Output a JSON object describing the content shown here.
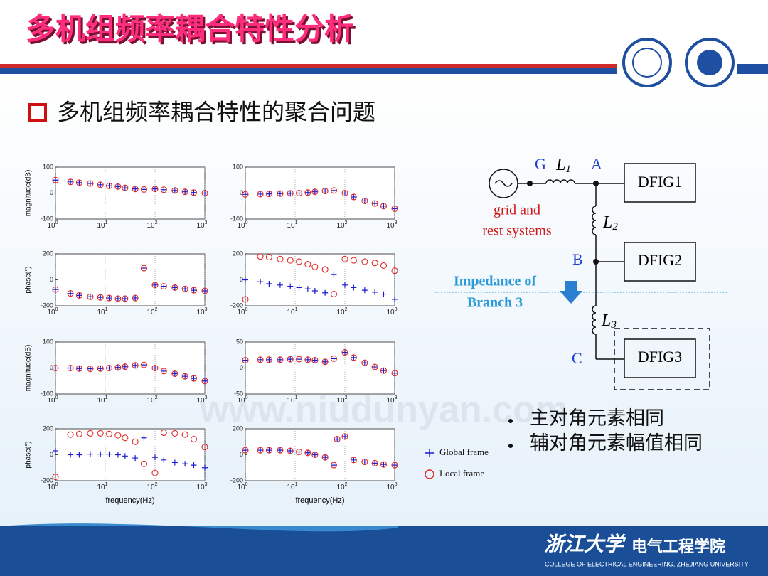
{
  "header": {
    "title": "多机组频率耦合特性分析",
    "subtitle": "多机组频率耦合特性的聚合问题"
  },
  "watermark": "www.niudunyan.com",
  "chart_data": [
    {
      "type": "scatter",
      "ylabel": "magnitude(dB)",
      "x": [
        1,
        2,
        3,
        5,
        8,
        12,
        18,
        25,
        40,
        60,
        100,
        150,
        250,
        400,
        600,
        1000
      ],
      "log_x": true,
      "xlim": [
        1,
        1000
      ],
      "xticks": [
        {
          "value": 1,
          "label": "10",
          "exponent": "0"
        },
        {
          "value": 10,
          "label": "10",
          "exponent": "1"
        },
        {
          "value": 100,
          "label": "10",
          "exponent": "2"
        },
        {
          "value": 1000,
          "label": "10",
          "exponent": "3"
        }
      ],
      "ylim": [
        -100,
        100
      ],
      "yticks": [
        -100,
        0,
        100
      ],
      "grid": true,
      "series": [
        {
          "name": "Global frame",
          "color": "#1a1ad0",
          "marker": "+",
          "values": [
            50,
            43,
            40,
            37,
            32,
            28,
            25,
            20,
            16,
            14,
            16,
            13,
            10,
            5,
            2,
            0
          ]
        },
        {
          "name": "Local frame",
          "color": "#e02828",
          "marker": "o",
          "values": [
            50,
            43,
            40,
            37,
            32,
            28,
            25,
            20,
            16,
            14,
            16,
            13,
            10,
            5,
            2,
            0
          ]
        }
      ]
    },
    {
      "type": "scatter",
      "x": [
        1,
        2,
        3,
        5,
        8,
        12,
        18,
        25,
        40,
        60,
        100,
        150,
        250,
        400,
        600,
        1000
      ],
      "log_x": true,
      "xlim": [
        1,
        1000
      ],
      "xticks": [
        {
          "value": 1,
          "label": "10",
          "exponent": "0"
        },
        {
          "value": 10,
          "label": "10",
          "exponent": "1"
        },
        {
          "value": 100,
          "label": "10",
          "exponent": "2"
        },
        {
          "value": 1000,
          "label": "10",
          "exponent": "3"
        }
      ],
      "ylim": [
        -100,
        100
      ],
      "yticks": [
        -100,
        0,
        100
      ],
      "grid": true,
      "series": [
        {
          "name": "Global frame",
          "color": "#1a1ad0",
          "marker": "+",
          "values": [
            -5,
            -4,
            -3,
            -2,
            -1,
            0,
            2,
            5,
            8,
            10,
            0,
            -15,
            -30,
            -40,
            -50,
            -60
          ]
        },
        {
          "name": "Local frame",
          "color": "#e02828",
          "marker": "o",
          "values": [
            -5,
            -4,
            -3,
            -2,
            -1,
            0,
            2,
            5,
            8,
            10,
            0,
            -15,
            -30,
            -40,
            -50,
            -60
          ]
        }
      ]
    },
    {
      "type": "scatter",
      "ylabel": "phase(°)",
      "x": [
        1,
        2,
        3,
        5,
        8,
        12,
        18,
        25,
        40,
        60,
        100,
        150,
        250,
        400,
        600,
        1000
      ],
      "log_x": true,
      "xlim": [
        1,
        1000
      ],
      "xticks": [
        {
          "value": 1,
          "label": "10",
          "exponent": "0"
        },
        {
          "value": 10,
          "label": "10",
          "exponent": "1"
        },
        {
          "value": 100,
          "label": "10",
          "exponent": "2"
        },
        {
          "value": 1000,
          "label": "10",
          "exponent": "3"
        }
      ],
      "ylim": [
        -200,
        200
      ],
      "yticks": [
        -200,
        0,
        200
      ],
      "grid": true,
      "series": [
        {
          "name": "Global frame",
          "color": "#1a1ad0",
          "marker": "+",
          "values": [
            -75,
            -105,
            -120,
            -130,
            -135,
            -140,
            -145,
            -145,
            -140,
            90,
            -40,
            -50,
            -60,
            -70,
            -80,
            -85
          ]
        },
        {
          "name": "Local frame",
          "color": "#e02828",
          "marker": "o",
          "values": [
            -75,
            -105,
            -120,
            -130,
            -135,
            -140,
            -145,
            -145,
            -140,
            90,
            -40,
            -50,
            -60,
            -70,
            -80,
            -85
          ]
        }
      ]
    },
    {
      "type": "scatter",
      "x": [
        1,
        2,
        3,
        5,
        8,
        12,
        18,
        25,
        40,
        60,
        100,
        150,
        250,
        400,
        600,
        1000
      ],
      "log_x": true,
      "xlim": [
        1,
        1000
      ],
      "xticks": [
        {
          "value": 1,
          "label": "10",
          "exponent": "0"
        },
        {
          "value": 10,
          "label": "10",
          "exponent": "1"
        },
        {
          "value": 100,
          "label": "10",
          "exponent": "2"
        },
        {
          "value": 1000,
          "label": "10",
          "exponent": "3"
        }
      ],
      "ylim": [
        -200,
        200
      ],
      "yticks": [
        -200,
        0,
        200
      ],
      "grid": true,
      "series": [
        {
          "name": "Global frame",
          "color": "#1a1ad0",
          "marker": "+",
          "values": [
            0,
            -15,
            -30,
            -40,
            -50,
            -60,
            -70,
            -85,
            -100,
            40,
            -40,
            -60,
            -80,
            -95,
            -110,
            -150
          ]
        },
        {
          "name": "Local frame",
          "color": "#e02828",
          "marker": "o",
          "values": [
            -150,
            180,
            175,
            160,
            150,
            140,
            120,
            100,
            80,
            -110,
            160,
            150,
            140,
            130,
            110,
            70
          ]
        }
      ]
    },
    {
      "type": "scatter",
      "ylabel": "magnitude(dB)",
      "x": [
        1,
        2,
        3,
        5,
        8,
        12,
        18,
        25,
        40,
        60,
        100,
        150,
        250,
        400,
        600,
        1000
      ],
      "log_x": true,
      "xlim": [
        1,
        1000
      ],
      "xticks": [
        {
          "value": 1,
          "label": "10",
          "exponent": "0"
        },
        {
          "value": 10,
          "label": "10",
          "exponent": "1"
        },
        {
          "value": 100,
          "label": "10",
          "exponent": "2"
        },
        {
          "value": 1000,
          "label": "10",
          "exponent": "3"
        }
      ],
      "ylim": [
        -100,
        100
      ],
      "yticks": [
        -100,
        0,
        100
      ],
      "grid": true,
      "series": [
        {
          "name": "Global frame",
          "color": "#1a1ad0",
          "marker": "+",
          "values": [
            0,
            0,
            -2,
            -3,
            -2,
            0,
            2,
            5,
            10,
            12,
            0,
            -12,
            -22,
            -32,
            -40,
            -50
          ]
        },
        {
          "name": "Local frame",
          "color": "#e02828",
          "marker": "o",
          "values": [
            0,
            0,
            -2,
            -3,
            -2,
            0,
            2,
            5,
            10,
            12,
            0,
            -12,
            -22,
            -32,
            -40,
            -50
          ]
        }
      ]
    },
    {
      "type": "scatter",
      "x": [
        1,
        2,
        3,
        5,
        8,
        12,
        18,
        25,
        40,
        60,
        100,
        150,
        250,
        400,
        600,
        1000
      ],
      "log_x": true,
      "xlim": [
        1,
        1000
      ],
      "xticks": [
        {
          "value": 1,
          "label": "10",
          "exponent": "0"
        },
        {
          "value": 10,
          "label": "10",
          "exponent": "1"
        },
        {
          "value": 100,
          "label": "10",
          "exponent": "2"
        },
        {
          "value": 1000,
          "label": "10",
          "exponent": "3"
        }
      ],
      "ylim": [
        -50,
        50
      ],
      "yticks": [
        -50,
        0,
        50
      ],
      "grid": true,
      "series": [
        {
          "name": "Global frame",
          "color": "#1a1ad0",
          "marker": "+",
          "values": [
            15,
            16,
            16,
            16,
            17,
            17,
            16,
            15,
            12,
            18,
            30,
            20,
            10,
            2,
            -5,
            -10
          ]
        },
        {
          "name": "Local frame",
          "color": "#e02828",
          "marker": "o",
          "values": [
            15,
            16,
            16,
            16,
            17,
            17,
            16,
            15,
            12,
            18,
            30,
            20,
            10,
            2,
            -5,
            -10
          ]
        }
      ]
    },
    {
      "type": "scatter",
      "ylabel": "phase(°)",
      "xlabel": "frequency(Hz)",
      "x": [
        1,
        2,
        3,
        5,
        8,
        12,
        18,
        25,
        40,
        60,
        100,
        150,
        250,
        400,
        600,
        1000
      ],
      "log_x": true,
      "xlim": [
        1,
        1000
      ],
      "xticks": [
        {
          "value": 1,
          "label": "10",
          "exponent": "0"
        },
        {
          "value": 10,
          "label": "10",
          "exponent": "1"
        },
        {
          "value": 100,
          "label": "10",
          "exponent": "2"
        },
        {
          "value": 1000,
          "label": "10",
          "exponent": "3"
        }
      ],
      "ylim": [
        -200,
        200
      ],
      "yticks": [
        -200,
        0,
        200
      ],
      "grid": true,
      "series": [
        {
          "name": "Global frame",
          "color": "#1a1ad0",
          "marker": "+",
          "values": [
            30,
            0,
            0,
            5,
            5,
            5,
            0,
            -10,
            -25,
            130,
            -20,
            -40,
            -60,
            -70,
            -80,
            -100
          ]
        },
        {
          "name": "Local frame",
          "color": "#e02828",
          "marker": "o",
          "values": [
            -170,
            155,
            160,
            165,
            165,
            160,
            150,
            130,
            100,
            -70,
            -140,
            170,
            165,
            155,
            120,
            60
          ]
        }
      ]
    },
    {
      "type": "scatter",
      "xlabel": "frequency(Hz)",
      "x": [
        1,
        2,
        3,
        5,
        8,
        12,
        18,
        25,
        40,
        60,
        70,
        100,
        150,
        250,
        400,
        600,
        1000
      ],
      "log_x": true,
      "xlim": [
        1,
        1000
      ],
      "xticks": [
        {
          "value": 1,
          "label": "10",
          "exponent": "0"
        },
        {
          "value": 10,
          "label": "10",
          "exponent": "1"
        },
        {
          "value": 100,
          "label": "10",
          "exponent": "2"
        },
        {
          "value": 1000,
          "label": "10",
          "exponent": "3"
        }
      ],
      "ylim": [
        -200,
        200
      ],
      "yticks": [
        -200,
        0,
        200
      ],
      "grid": true,
      "legend": "right",
      "series": [
        {
          "name": "Global frame",
          "color": "#1a1ad0",
          "marker": "+",
          "values": [
            35,
            35,
            35,
            35,
            30,
            22,
            15,
            0,
            -20,
            -80,
            120,
            140,
            -40,
            -55,
            -65,
            -75,
            -80
          ]
        },
        {
          "name": "Local frame",
          "color": "#e02828",
          "marker": "o",
          "values": [
            35,
            35,
            35,
            35,
            30,
            22,
            15,
            0,
            -20,
            -80,
            120,
            140,
            -40,
            -55,
            -65,
            -75,
            -80
          ]
        }
      ]
    }
  ],
  "diagram": {
    "nodes": {
      "G": "G",
      "A": "A",
      "B": "B",
      "C": "C"
    },
    "inductors": {
      "L1": {
        "label": "L",
        "sub": "1"
      },
      "L2": {
        "label": "L",
        "sub": "2"
      },
      "L3": {
        "label": "L",
        "sub": "3"
      }
    },
    "units": [
      "DFIG1",
      "DFIG2",
      "DFIG3"
    ],
    "source_label": [
      "grid and",
      "rest systems"
    ],
    "impedance_label": [
      "Impedance of",
      "Branch 3"
    ]
  },
  "bullets": [
    "主对角元素相同",
    "辅对角元素幅值相同"
  ],
  "footer": {
    "logo_text": "浙江大学",
    "school": "电气工程学院",
    "english": "COLLEGE OF ELECTRICAL ENGINEERING, ZHEJIANG UNIVERSITY"
  }
}
